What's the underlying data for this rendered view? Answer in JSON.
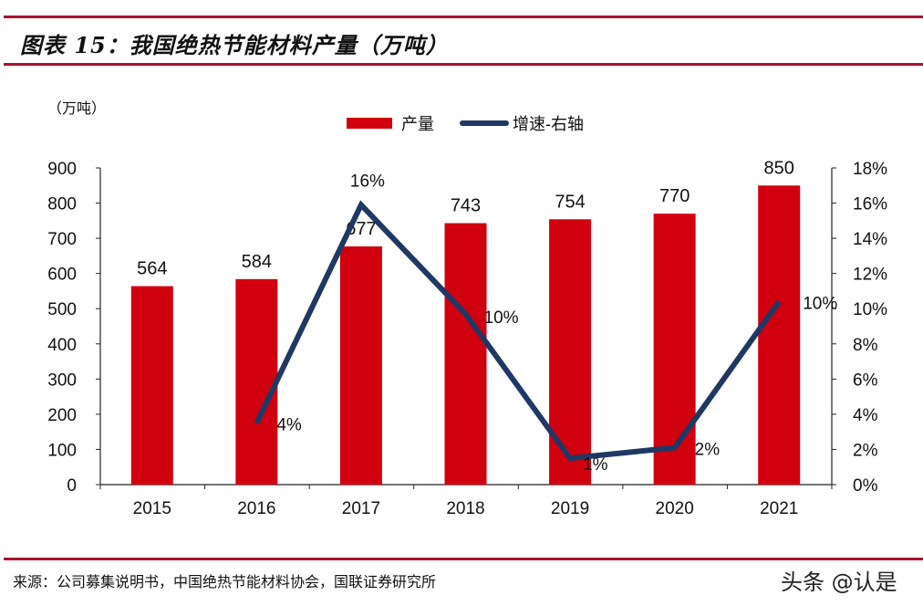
{
  "header": {
    "title": "图表 15：我国绝热节能材料产量（万吨）"
  },
  "footer": {
    "source": "来源：公司募集说明书，中国绝热节能材料协会，国联证券研究所",
    "watermark": "头条 @认是"
  },
  "colors": {
    "bar": "#d0000f",
    "line": "#1f3864",
    "rule": "#a8122f"
  },
  "chart_data": {
    "type": "bar+line",
    "ylabel": "（万吨）",
    "categories": [
      "2015",
      "2016",
      "2017",
      "2018",
      "2019",
      "2020",
      "2021"
    ],
    "legend_position": "top",
    "grid": false,
    "series": [
      {
        "name": "产量",
        "type": "bar",
        "axis": "left",
        "values": [
          564,
          584,
          677,
          743,
          754,
          770,
          850
        ],
        "labels": [
          "564",
          "584",
          "677",
          "743",
          "754",
          "770",
          "850"
        ]
      },
      {
        "name": "增速-右轴",
        "type": "line",
        "axis": "right",
        "values": [
          null,
          3.5,
          15.9,
          9.7,
          1.5,
          2.1,
          10.4
        ],
        "labels": [
          "",
          "4%",
          "16%",
          "10%",
          "1%",
          "2%",
          "10%"
        ]
      }
    ],
    "left_axis": {
      "range": [
        0,
        900
      ],
      "ticks": [
        "0",
        "100",
        "200",
        "300",
        "400",
        "500",
        "600",
        "700",
        "800",
        "900"
      ]
    },
    "right_axis": {
      "range": [
        0,
        18
      ],
      "ticks": [
        "0%",
        "2%",
        "4%",
        "6%",
        "8%",
        "10%",
        "12%",
        "14%",
        "16%",
        "18%"
      ]
    }
  }
}
